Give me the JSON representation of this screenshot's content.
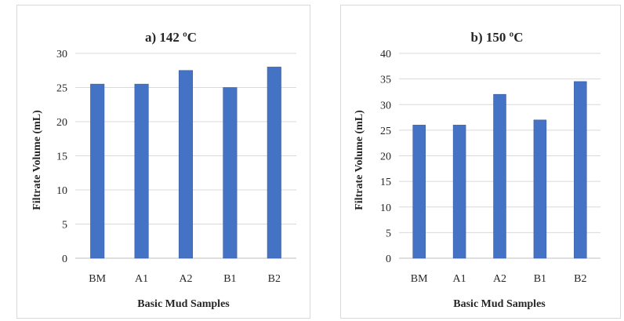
{
  "chart_data": [
    {
      "type": "bar",
      "title": "a) 142 ºC",
      "xlabel": "Basic Mud Samples",
      "ylabel": "Filtrate Volume (mL)",
      "categories": [
        "BM",
        "A1",
        "A2",
        "B1",
        "B2"
      ],
      "values": [
        25.5,
        25.5,
        27.5,
        25,
        28
      ],
      "ylim": [
        0,
        30
      ],
      "yticks": [
        0,
        5,
        10,
        15,
        20,
        25,
        30
      ],
      "grid": true,
      "bar_color": "#4472c4"
    },
    {
      "type": "bar",
      "title": "b) 150 ºC",
      "xlabel": "Basic Mud Samples",
      "ylabel": "Filtrate Volume (mL)",
      "categories": [
        "BM",
        "A1",
        "A2",
        "B1",
        "B2"
      ],
      "values": [
        26,
        26,
        32,
        27,
        34.5
      ],
      "ylim": [
        0,
        40
      ],
      "yticks": [
        0,
        5,
        10,
        15,
        20,
        25,
        30,
        35,
        40
      ],
      "grid": true,
      "bar_color": "#4472c4"
    }
  ]
}
